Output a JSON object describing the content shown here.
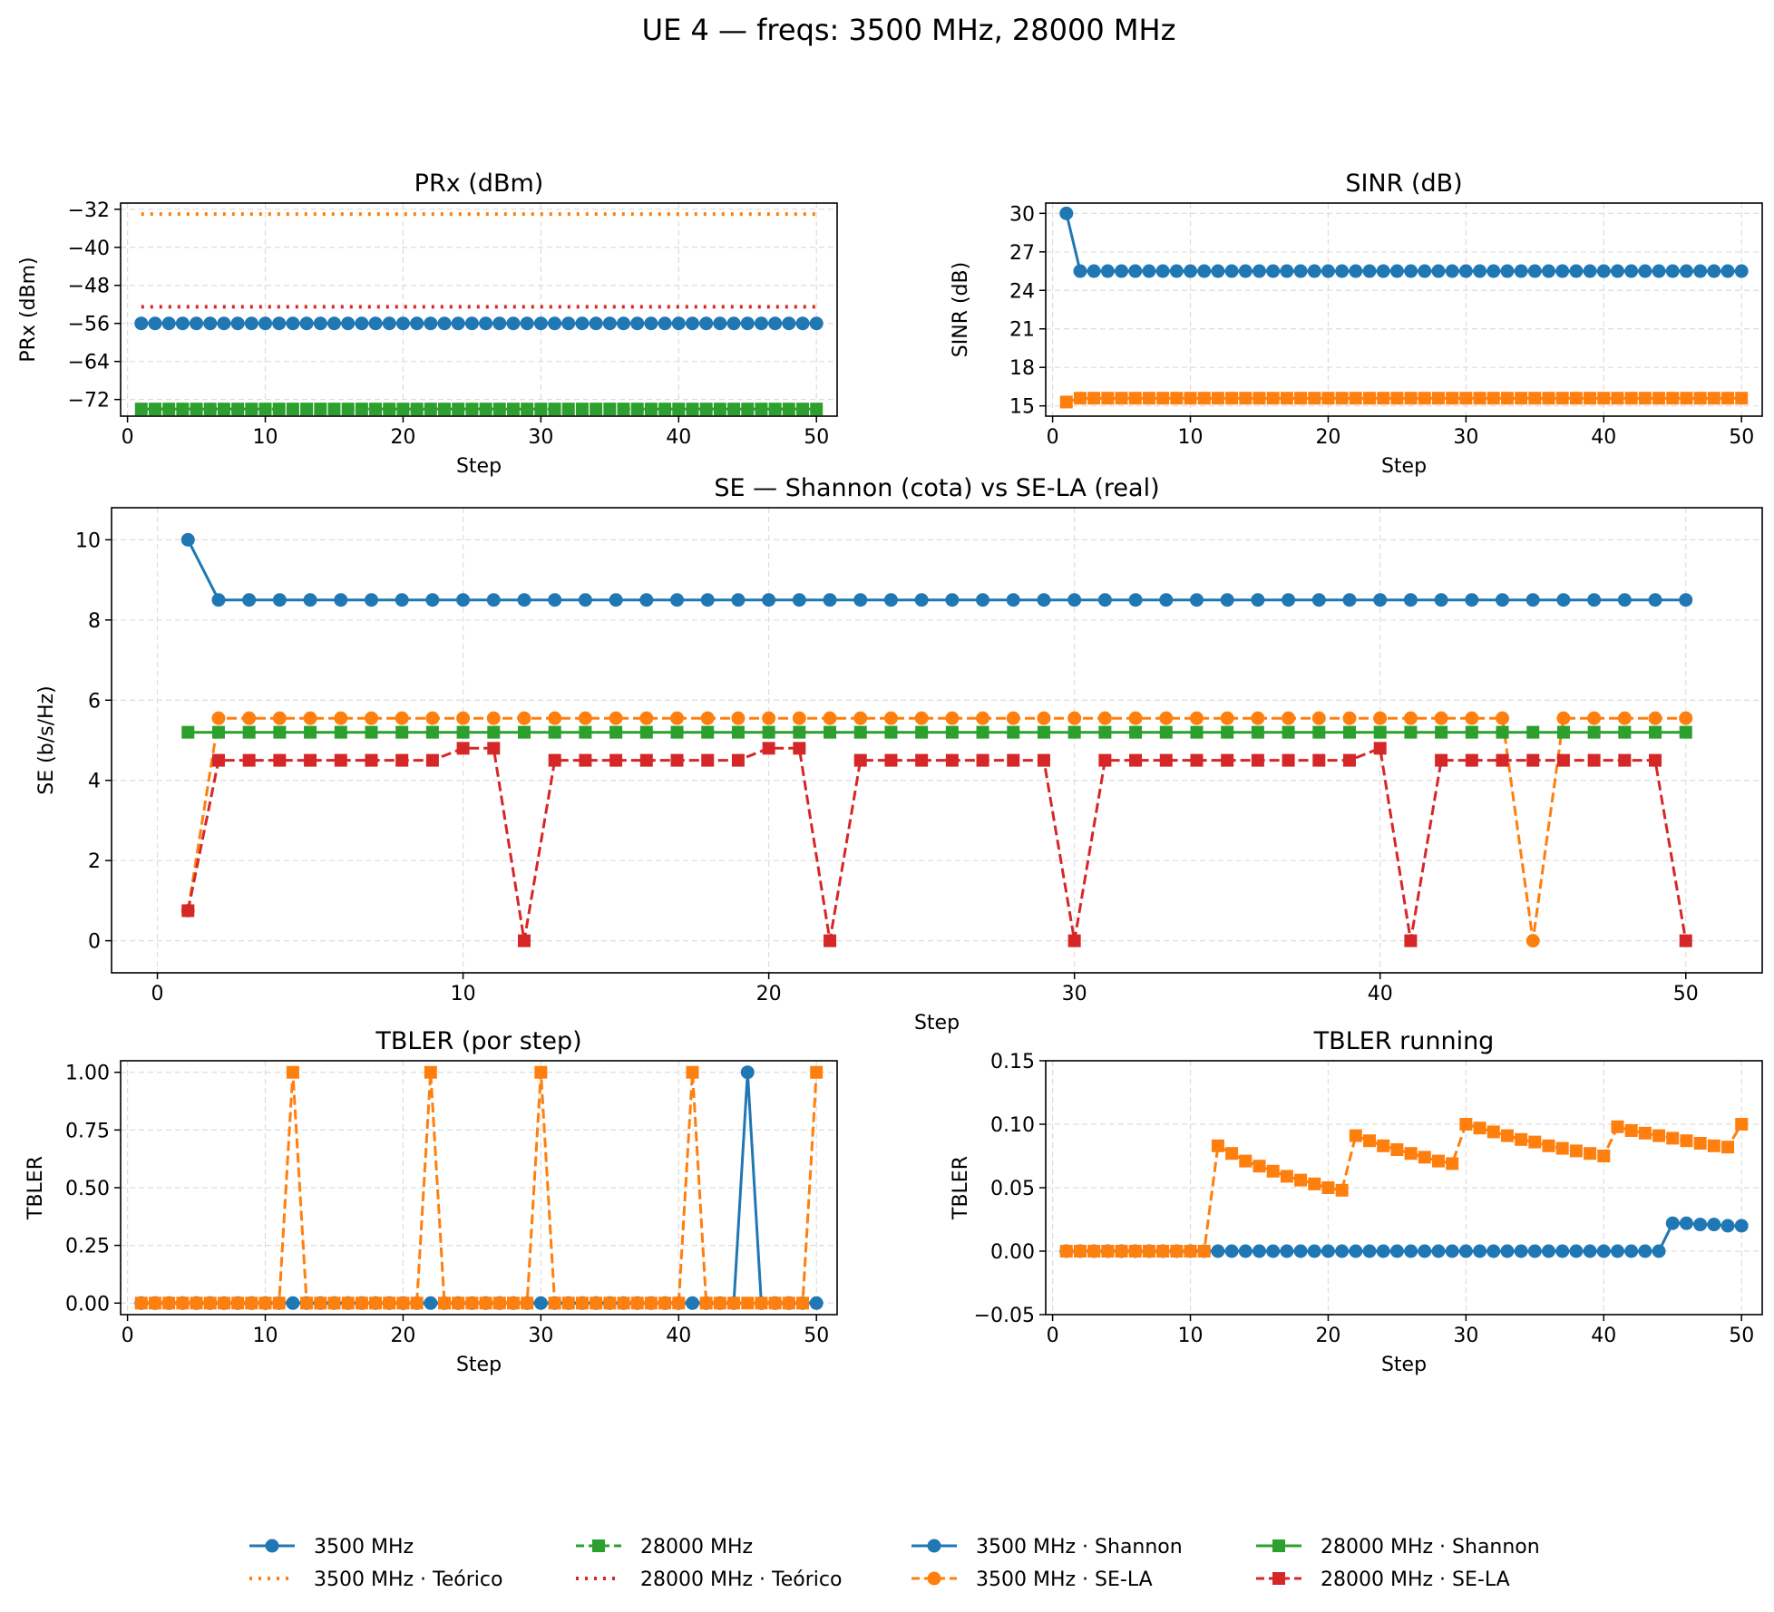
{
  "figure": {
    "title": "UE 4 — freqs: 3500 MHz, 28000 MHz"
  },
  "colors": {
    "blue": "#1f77b4",
    "orange": "#ff7f0e",
    "green": "#2ca02c",
    "red": "#d62728",
    "grid": "#dddddd"
  },
  "legend": [
    {
      "label": "3500 MHz",
      "color": "#1f77b4",
      "style": "solid",
      "marker": "circle"
    },
    {
      "label": "3500 MHz · Teórico",
      "color": "#ff7f0e",
      "style": "dotted",
      "marker": "none"
    },
    {
      "label": "28000 MHz",
      "color": "#2ca02c",
      "style": "dashed",
      "marker": "square"
    },
    {
      "label": "28000 MHz · Teórico",
      "color": "#d62728",
      "style": "dotted",
      "marker": "none"
    },
    {
      "label": "3500 MHz · Shannon",
      "color": "#1f77b4",
      "style": "solid",
      "marker": "circle"
    },
    {
      "label": "3500 MHz · SE-LA",
      "color": "#ff7f0e",
      "style": "dashed",
      "marker": "circle"
    },
    {
      "label": "28000 MHz · Shannon",
      "color": "#2ca02c",
      "style": "solid",
      "marker": "square"
    },
    {
      "label": "28000 MHz · SE-LA",
      "color": "#d62728",
      "style": "dashed",
      "marker": "square"
    }
  ],
  "chart_data": [
    {
      "id": "prx",
      "type": "line",
      "title": "PRx (dBm)",
      "xlabel": "Step",
      "ylabel": "PRx (dBm)",
      "xlim": [
        -0.5,
        51.5
      ],
      "ylim": [
        -75.5,
        -30.7
      ],
      "xticks": [
        0,
        10,
        20,
        30,
        40,
        50
      ],
      "yticks": [
        -72,
        -64,
        -56,
        -48,
        -40,
        -32
      ],
      "series": [
        {
          "color": "#ff7f0e",
          "style": "dotted",
          "marker": "none",
          "x": [
            1,
            50
          ],
          "y": [
            -33,
            -33
          ]
        },
        {
          "color": "#d62728",
          "style": "dotted",
          "marker": "none",
          "x": [
            1,
            50
          ],
          "y": [
            -52.5,
            -52.5
          ]
        },
        {
          "color": "#1f77b4",
          "style": "solid",
          "marker": "circle",
          "const": -56
        },
        {
          "color": "#2ca02c",
          "style": "dashed",
          "marker": "square",
          "const": -74
        }
      ]
    },
    {
      "id": "sinr",
      "type": "line",
      "title": "SINR (dB)",
      "xlabel": "Step",
      "ylabel": "SINR (dB)",
      "xlim": [
        -0.5,
        51.5
      ],
      "ylim": [
        14.2,
        30.8
      ],
      "xticks": [
        0,
        10,
        20,
        30,
        40,
        50
      ],
      "yticks": [
        15,
        18,
        21,
        24,
        27,
        30
      ],
      "series": [
        {
          "color": "#1f77b4",
          "style": "solid",
          "marker": "circle",
          "first": 30,
          "const": 25.5
        },
        {
          "color": "#ff7f0e",
          "style": "solid",
          "marker": "square",
          "first": 15.3,
          "const": 15.6
        }
      ]
    },
    {
      "id": "se",
      "type": "line",
      "title": "SE — Shannon (cota) vs SE-LA (real)",
      "xlabel": "Step",
      "ylabel": "SE (b/s/Hz)",
      "xlim": [
        -1.5,
        52.5
      ],
      "ylim": [
        -0.8,
        10.8
      ],
      "xticks": [
        0,
        10,
        20,
        30,
        40,
        50
      ],
      "yticks": [
        0,
        2,
        4,
        6,
        8,
        10
      ],
      "series": [
        {
          "name": "3500 MHz · Shannon",
          "color": "#1f77b4",
          "style": "solid",
          "marker": "circle",
          "first": 10,
          "const": 8.5
        },
        {
          "name": "3500 MHz · SE-LA",
          "color": "#ff7f0e",
          "style": "dashed",
          "marker": "circle",
          "first": 0.75,
          "const": 5.55,
          "overrides": {
            "45": 0
          }
        },
        {
          "name": "28000 MHz · Shannon",
          "color": "#2ca02c",
          "style": "solid",
          "marker": "square",
          "const": 5.2
        },
        {
          "name": "28000 MHz · SE-LA",
          "color": "#d62728",
          "style": "dashed",
          "marker": "square",
          "first": 0.75,
          "const": 4.5,
          "overrides": {
            "10": 4.8,
            "11": 4.8,
            "12": 0,
            "20": 4.8,
            "21": 4.8,
            "22": 0,
            "30": 0,
            "40": 4.8,
            "41": 0,
            "50": 0
          }
        }
      ]
    },
    {
      "id": "tbler",
      "type": "line",
      "title": "TBLER (por step)",
      "xlabel": "Step",
      "ylabel": "TBLER",
      "xlim": [
        -0.5,
        51.5
      ],
      "ylim": [
        -0.05,
        1.05
      ],
      "xticks": [
        0,
        10,
        20,
        30,
        40,
        50
      ],
      "yticks": [
        "0.00",
        "0.25",
        "0.50",
        "0.75",
        "1.00"
      ],
      "series": [
        {
          "color": "#1f77b4",
          "style": "solid",
          "marker": "circle",
          "const": 0,
          "overrides": {
            "45": 1
          }
        },
        {
          "color": "#ff7f0e",
          "style": "dashed",
          "marker": "square",
          "const": 0,
          "overrides": {
            "12": 1,
            "22": 1,
            "30": 1,
            "41": 1,
            "50": 1
          }
        }
      ]
    },
    {
      "id": "running",
      "type": "line",
      "title": "TBLER running",
      "xlabel": "Step",
      "ylabel": "TBLER",
      "xlim": [
        -0.5,
        51.5
      ],
      "ylim": [
        -0.05,
        0.15
      ],
      "xticks": [
        0,
        10,
        20,
        30,
        40,
        50
      ],
      "yticks": [
        "−0.05",
        "0.00",
        "0.05",
        "0.10",
        "0.15"
      ],
      "series": [
        {
          "color": "#1f77b4",
          "style": "solid",
          "marker": "circle",
          "x": [
            1,
            2,
            3,
            4,
            5,
            6,
            7,
            8,
            9,
            10,
            11,
            12,
            13,
            14,
            15,
            16,
            17,
            18,
            19,
            20,
            21,
            22,
            23,
            24,
            25,
            26,
            27,
            28,
            29,
            30,
            31,
            32,
            33,
            34,
            35,
            36,
            37,
            38,
            39,
            40,
            41,
            42,
            43,
            44,
            45,
            46,
            47,
            48,
            49,
            50
          ],
          "y": [
            0,
            0,
            0,
            0,
            0,
            0,
            0,
            0,
            0,
            0,
            0,
            0,
            0,
            0,
            0,
            0,
            0,
            0,
            0,
            0,
            0,
            0,
            0,
            0,
            0,
            0,
            0,
            0,
            0,
            0,
            0,
            0,
            0,
            0,
            0,
            0,
            0,
            0,
            0,
            0,
            0,
            0,
            0,
            0,
            0.022,
            0.022,
            0.021,
            0.021,
            0.02,
            0.02
          ]
        },
        {
          "color": "#ff7f0e",
          "style": "dashed",
          "marker": "square",
          "x": [
            1,
            2,
            3,
            4,
            5,
            6,
            7,
            8,
            9,
            10,
            11,
            12,
            13,
            14,
            15,
            16,
            17,
            18,
            19,
            20,
            21,
            22,
            23,
            24,
            25,
            26,
            27,
            28,
            29,
            30,
            31,
            32,
            33,
            34,
            35,
            36,
            37,
            38,
            39,
            40,
            41,
            42,
            43,
            44,
            45,
            46,
            47,
            48,
            49,
            50
          ],
          "y": [
            0,
            0,
            0,
            0,
            0,
            0,
            0,
            0,
            0,
            0,
            0,
            0.083,
            0.077,
            0.071,
            0.067,
            0.063,
            0.059,
            0.056,
            0.053,
            0.05,
            0.048,
            0.091,
            0.087,
            0.083,
            0.08,
            0.077,
            0.074,
            0.071,
            0.069,
            0.1,
            0.097,
            0.094,
            0.091,
            0.088,
            0.086,
            0.083,
            0.081,
            0.079,
            0.077,
            0.075,
            0.098,
            0.095,
            0.093,
            0.091,
            0.089,
            0.087,
            0.085,
            0.083,
            0.082,
            0.1
          ]
        }
      ]
    }
  ]
}
